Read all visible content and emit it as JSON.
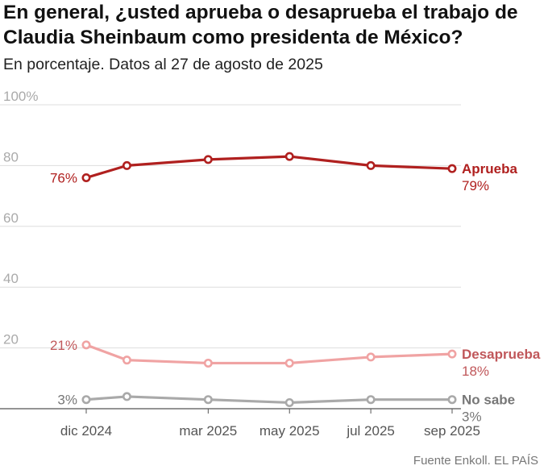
{
  "header": {
    "title": "En general, ¿usted aprueba o desaprueba el trabajo de Claudia Sheinbaum como presidenta de México?",
    "subtitle": "En porcentaje. Datos al 27 de agosto de 2025"
  },
  "source": "Fuente Enkoll. EL PAÍS",
  "colors": {
    "aprueba": "#b0201f",
    "desaprueba": "#f0a3a3",
    "desaprueba_label": "#c0575a",
    "nosabe": "#a9a9a9",
    "nosabe_label": "#777777",
    "grid": "#dddddd",
    "axis_text": "#aaaaaa"
  },
  "chart_data": {
    "type": "line",
    "title": "En general, ¿usted aprueba o desaprueba el trabajo de Claudia Sheinbaum como presidenta de México?",
    "subtitle": "En porcentaje. Datos al 27 de agosto de 2025",
    "x": [
      "2024-12",
      "2025-01",
      "2025-03",
      "2025-05",
      "2025-07",
      "2025-09"
    ],
    "x_tick_labels": [
      "dic 2024",
      "mar 2025",
      "may 2025",
      "jul 2025",
      "sep 2025"
    ],
    "x_tick_positions": [
      "2024-12",
      "2025-03",
      "2025-05",
      "2025-07",
      "2025-09"
    ],
    "ylim": [
      0,
      100
    ],
    "yticks": [
      0,
      20,
      40,
      60,
      80,
      100
    ],
    "ytick_labels": [
      "",
      "20",
      "40",
      "60",
      "80",
      "100%"
    ],
    "grid": true,
    "series": [
      {
        "name": "Aprueba",
        "values": [
          76,
          80,
          82,
          83,
          80,
          79
        ],
        "start_label": "76%",
        "end_label": "79%"
      },
      {
        "name": "Desaprueba",
        "values": [
          21,
          16,
          15,
          15,
          17,
          18
        ],
        "start_label": "21%",
        "end_label": "18%"
      },
      {
        "name": "No sabe",
        "values": [
          3,
          4,
          3,
          2,
          3,
          3
        ],
        "start_label": "3%",
        "end_label": "3%"
      }
    ],
    "source": "Fuente Enkoll. EL PAÍS"
  }
}
